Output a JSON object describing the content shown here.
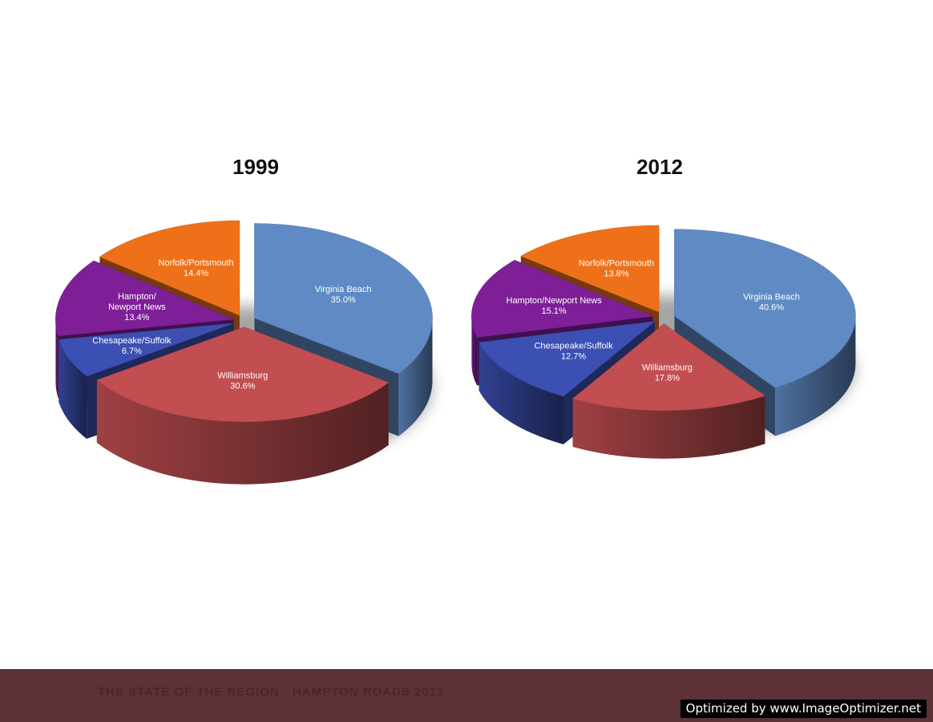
{
  "chart_data": [
    {
      "type": "pie",
      "title": "1999",
      "slices": [
        {
          "label": "Virginia Beach",
          "value_label": "35.0%",
          "value": 35.0,
          "color": "#5f8ac4"
        },
        {
          "label": "Williamsburg",
          "value_label": "30.6%",
          "value": 30.6,
          "color": "#c24e52"
        },
        {
          "label": "Chesapeake/Suffolk",
          "value_label": "6.7%",
          "value": 6.7,
          "color": "#3c4fb2"
        },
        {
          "label": "Hampton/ Newport News",
          "value_label": "13.4%",
          "value": 13.4,
          "color": "#7e1f98"
        },
        {
          "label": "Norfolk/Portsmouth",
          "value_label": "14.4%",
          "value": 14.4,
          "color": "#ee7119"
        }
      ]
    },
    {
      "type": "pie",
      "title": "2012",
      "slices": [
        {
          "label": "Virginia Beach",
          "value_label": "40.6%",
          "value": 40.6,
          "color": "#5f8ac4"
        },
        {
          "label": "Williamsburg",
          "value_label": "17.8%",
          "value": 17.8,
          "color": "#c24e52"
        },
        {
          "label": "Chesapeake/Suffolk",
          "value_label": "12.7%",
          "value": 12.7,
          "color": "#3c4fb2"
        },
        {
          "label": "Hampton/Newport News",
          "value_label": "15.1%",
          "value": 15.1,
          "color": "#7e1f98"
        },
        {
          "label": "Norfolk/Portsmouth",
          "value_label": "13.8%",
          "value": 13.8,
          "color": "#ee7119"
        }
      ]
    }
  ],
  "footer": {
    "text": "THE STATE OF THE REGION  ·  HAMPTON ROADS 2013",
    "watermark": "Optimized by www.ImageOptimizer.net"
  }
}
